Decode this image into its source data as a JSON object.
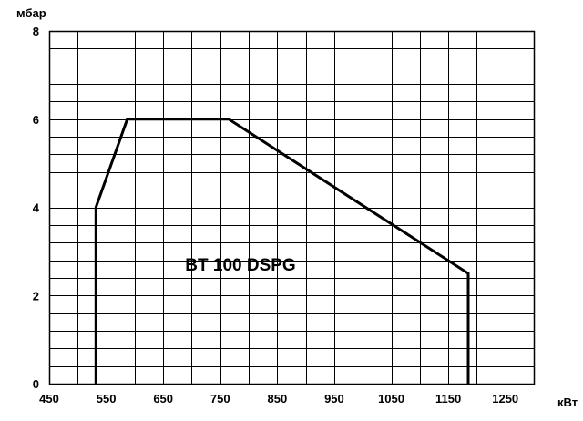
{
  "chart_data": {
    "type": "line",
    "title": "",
    "annotation": "BT 100 DSPG",
    "xlabel": "кВт",
    "ylabel": "мбар",
    "xlim": [
      450,
      1300
    ],
    "ylim": [
      0,
      8
    ],
    "x_ticks": [
      450,
      550,
      650,
      750,
      850,
      950,
      1050,
      1150,
      1250
    ],
    "y_ticks": [
      0,
      2,
      4,
      6,
      8
    ],
    "x_minor_step": 50,
    "y_minor_step": 0.4,
    "grid": true,
    "legend": "none",
    "series": [
      {
        "x": [
          532,
          532,
          587,
          765,
          1185,
          1185
        ],
        "y": [
          0,
          4,
          6,
          6,
          2.5,
          0
        ]
      }
    ],
    "colors": {
      "line": "#000000",
      "grid": "#000000",
      "background": "#ffffff"
    }
  }
}
